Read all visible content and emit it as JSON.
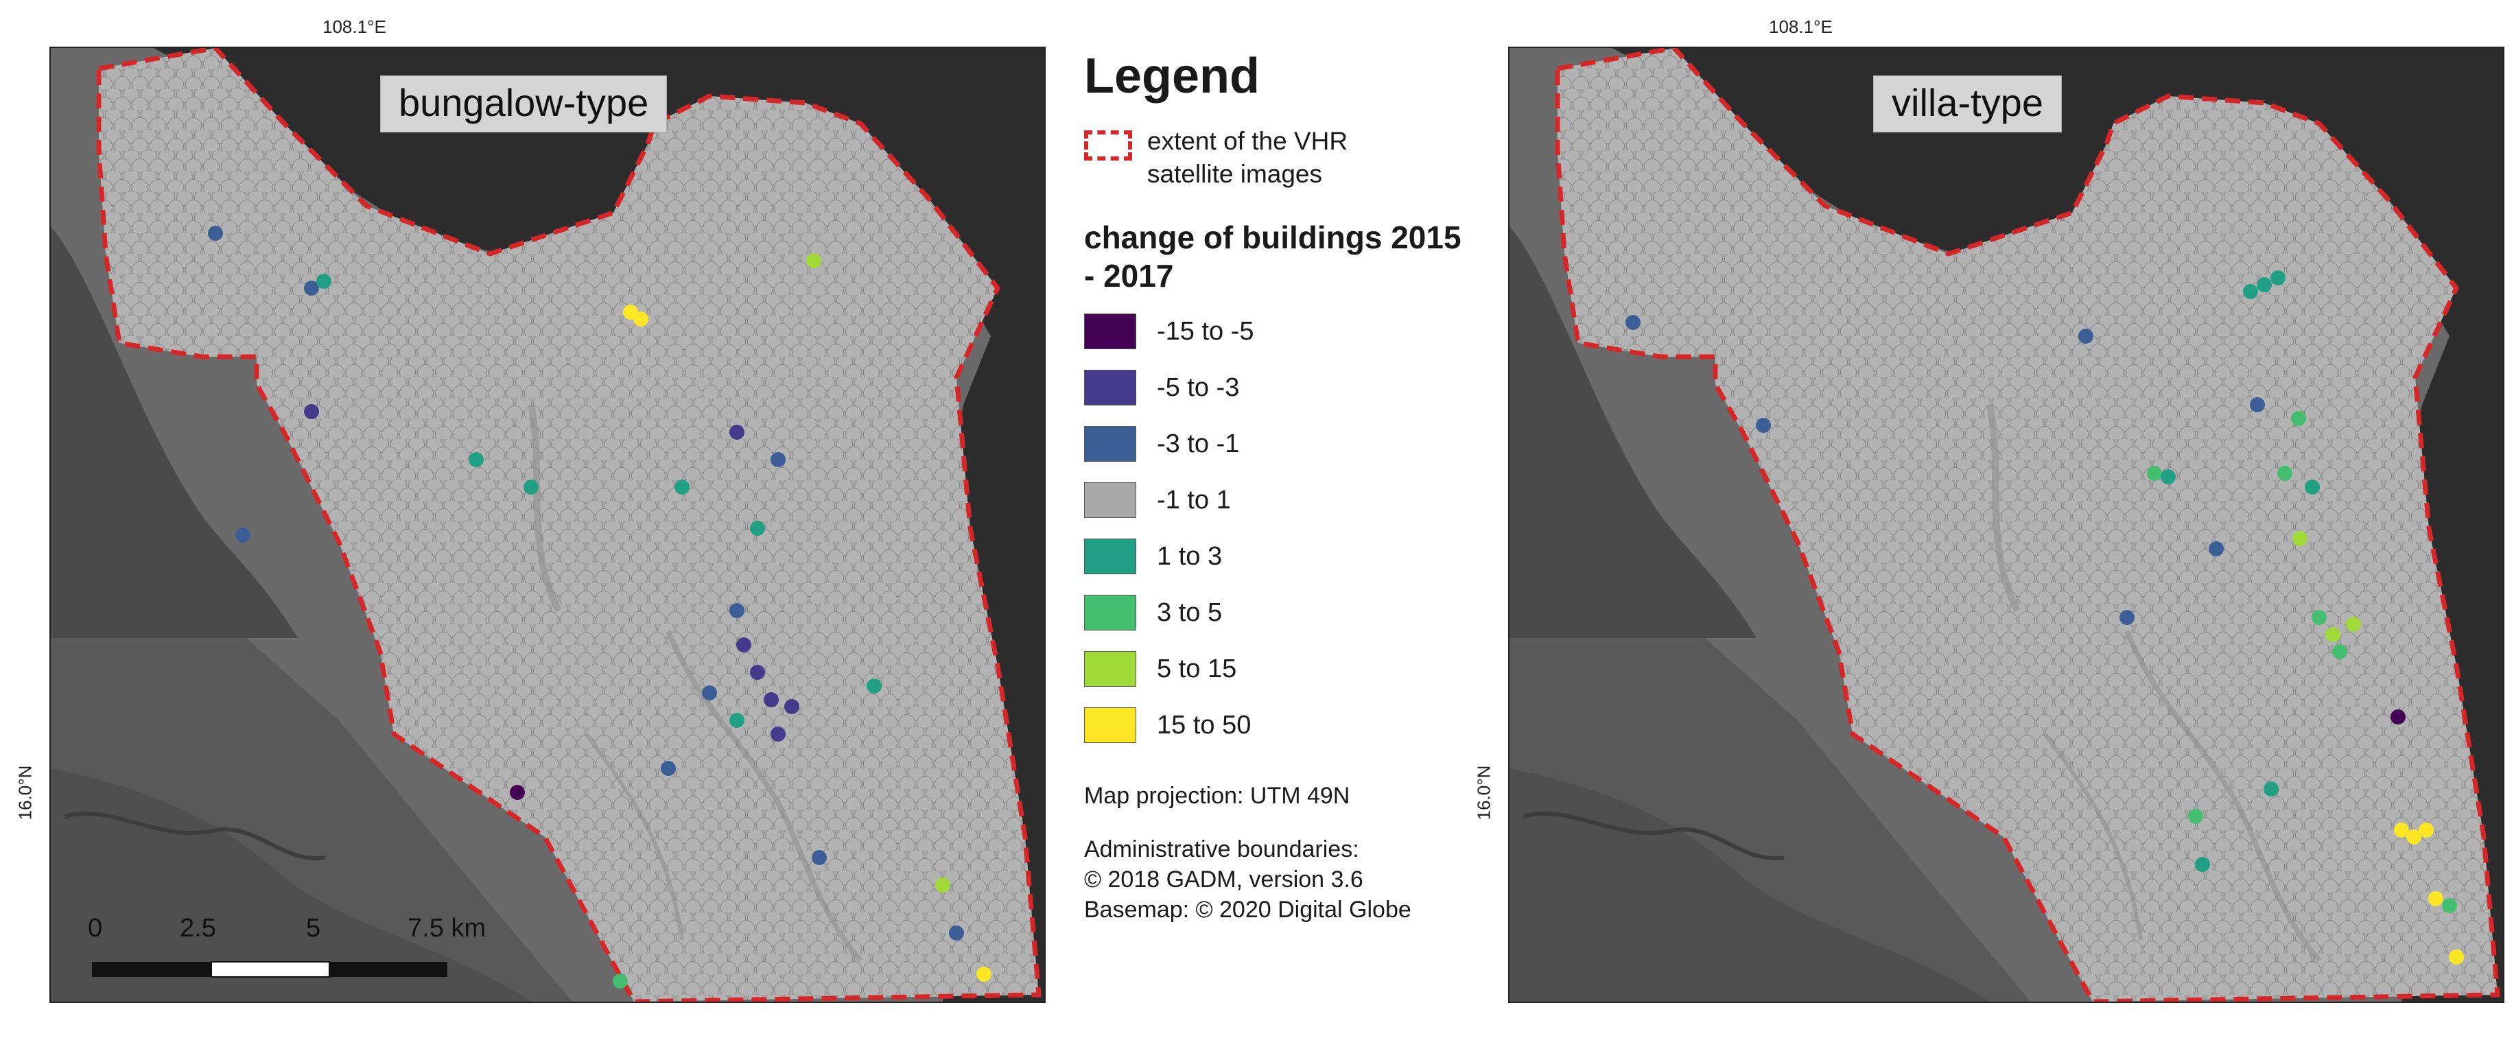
{
  "left_map": {
    "title": "bungalow-type",
    "lon_label": "108.1°E",
    "lat_label": "16.0°N"
  },
  "right_map": {
    "title": "villa-type",
    "lon_label": "108.1°E",
    "lat_label": "16.0°N"
  },
  "scale_bar": {
    "labels": [
      "0",
      "2.5",
      "5",
      "7.5 km"
    ]
  },
  "legend": {
    "title": "Legend",
    "extent_label": "extent of the VHR satellite images",
    "change_title": "change of buildings 2015 - 2017",
    "classes": [
      {
        "label": "-15 to -5",
        "color": "#440154"
      },
      {
        "label": "-5 to -3",
        "color": "#453a8c"
      },
      {
        "label": "-3 to -1",
        "color": "#3b5e96"
      },
      {
        "label": "-1 to 1",
        "color": "#a8a8a8"
      },
      {
        "label": "1 to 3",
        "color": "#21a086"
      },
      {
        "label": "3 to 5",
        "color": "#44bf70"
      },
      {
        "label": "5 to 15",
        "color": "#a0da39"
      },
      {
        "label": "15 to 50",
        "color": "#fde725"
      }
    ],
    "projection": "Map projection: UTM 49N",
    "admin": "Administrative boundaries:",
    "gadm": "© 2018 GADM, version 3.6",
    "basemap": "Basemap: © 2020 Digital Globe"
  },
  "colors": {
    "extent_outline": "#d62728",
    "water": "#2b2b2b",
    "land": "#6e6e6e",
    "hex_fill": "#a8a8a8"
  }
}
